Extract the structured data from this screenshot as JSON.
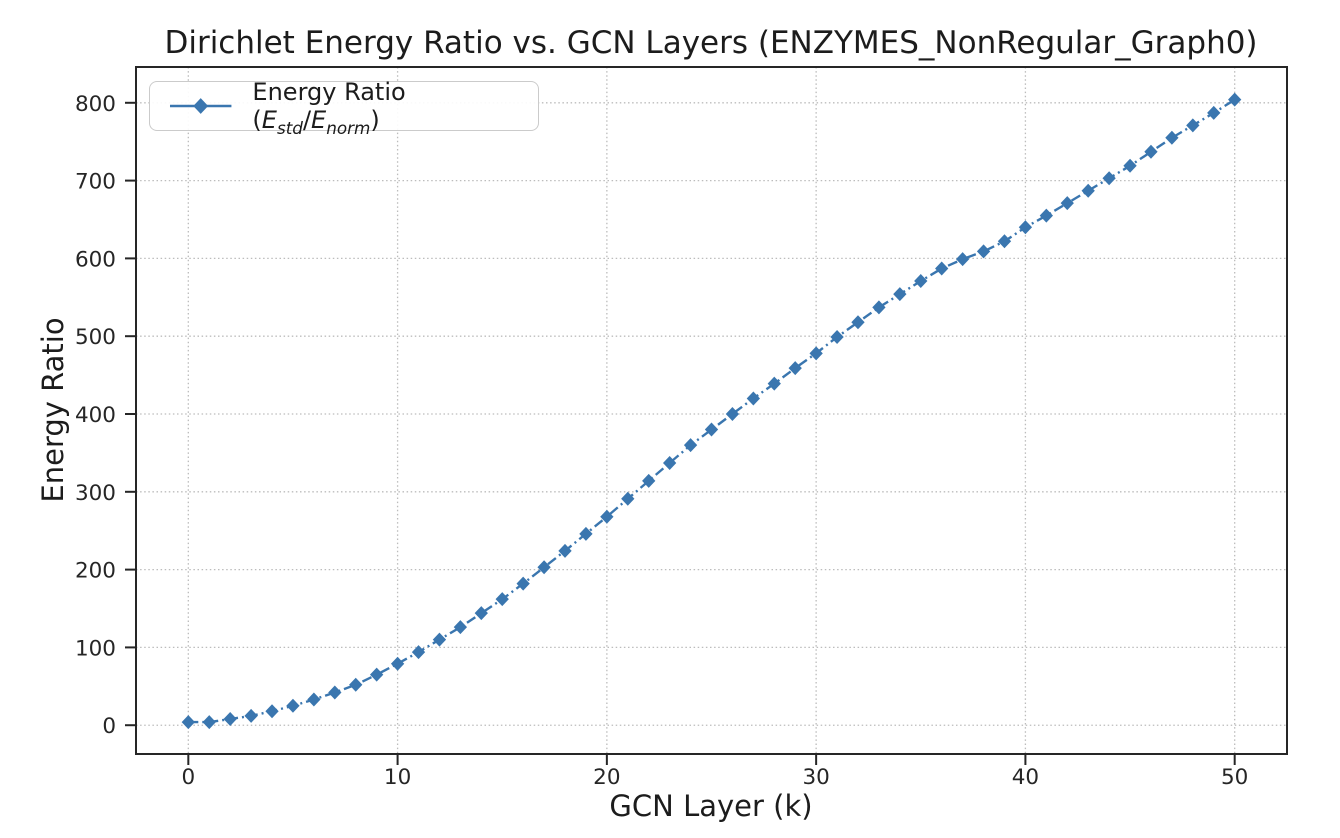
{
  "chart_data": {
    "type": "line",
    "title": "Dirichlet Energy Ratio vs. GCN Layers (ENZYMES_NonRegular_Graph0)",
    "xlabel": "GCN Layer (k)",
    "ylabel": "Energy Ratio",
    "legend": {
      "prefix": "Energy Ratio (",
      "var1": "E",
      "sub1": "std",
      "divider": "/",
      "var2": "E",
      "sub2": "norm",
      "suffix": ")",
      "position": "upper left"
    },
    "series": [
      {
        "name": "Energy Ratio (E_std/E_norm)",
        "x": [
          0,
          1,
          2,
          3,
          4,
          5,
          6,
          7,
          8,
          9,
          10,
          11,
          12,
          13,
          14,
          15,
          16,
          17,
          18,
          19,
          20,
          21,
          22,
          23,
          24,
          25,
          26,
          27,
          28,
          29,
          30,
          31,
          32,
          33,
          34,
          35,
          36,
          37,
          38,
          39,
          40,
          41,
          42,
          43,
          44,
          45,
          46,
          47,
          48,
          49,
          50
        ],
        "y": [
          4,
          4,
          8,
          12,
          18,
          25,
          33,
          42,
          52,
          65,
          79,
          94,
          110,
          126,
          144,
          162,
          182,
          203,
          224,
          246,
          268,
          291,
          314,
          337,
          360,
          380,
          400,
          420,
          439,
          459,
          478,
          499,
          518,
          537,
          554,
          571,
          587,
          599,
          609,
          622,
          640,
          655,
          671,
          687,
          703,
          719,
          737,
          755,
          771,
          787,
          804
        ]
      }
    ],
    "x_ticks": [
      0,
      10,
      20,
      30,
      40,
      50
    ],
    "y_ticks": [
      0,
      100,
      200,
      300,
      400,
      500,
      600,
      700,
      800
    ],
    "xlim": [
      -2.5,
      52.5
    ],
    "ylim": [
      -37,
      846
    ],
    "grid": true,
    "grid_style": "dotted",
    "line_color": "#3a76af",
    "marker": "diamond",
    "linestyle": "dash-dot",
    "background": "#ffffff"
  }
}
